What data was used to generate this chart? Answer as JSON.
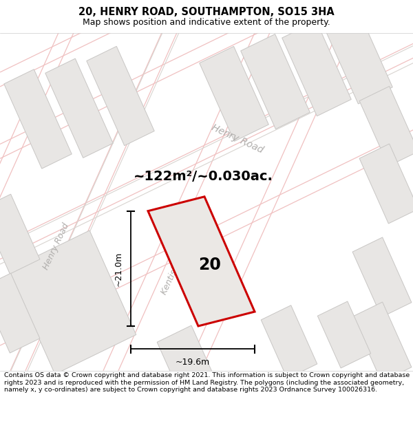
{
  "title_line1": "20, HENRY ROAD, SOUTHAMPTON, SO15 3HA",
  "title_line2": "Map shows position and indicative extent of the property.",
  "area_text": "~122m²/~0.030ac.",
  "dim_width": "~19.6m",
  "dim_height": "~21.0m",
  "property_label": "20",
  "copyright_text": "Contains OS data © Crown copyright and database right 2021. This information is subject to Crown copyright and database rights 2023 and is reproduced with the permission of HM Land Registry. The polygons (including the associated geometry, namely x, y co-ordinates) are subject to Crown copyright and database rights 2023 Ordnance Survey 100026316.",
  "map_bg": "#f7f6f5",
  "building_color": "#e8e6e4",
  "building_outline": "#c8c6c4",
  "road_line_color": "#f0c0c0",
  "road_outline_color": "#d8d4d0",
  "property_fill": "#ebe8e5",
  "property_outline": "#cc0000",
  "title_bg": "#ffffff",
  "footer_bg": "#ffffff",
  "text_gray": "#b0aeac"
}
